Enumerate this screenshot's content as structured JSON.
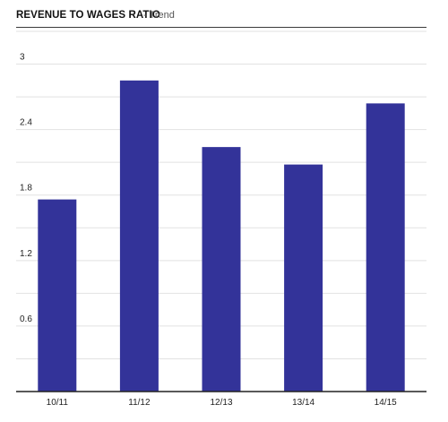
{
  "header": {
    "title": "REVENUE TO WAGES RATIO",
    "subtitle": "- Trend"
  },
  "colors": {
    "bar": "#333399",
    "gridline": "#e2e2e2",
    "axis": "#222222",
    "text": "#222222"
  },
  "chart_data": {
    "type": "bar",
    "title": "REVENUE TO WAGES RATIO",
    "subtitle": "- Trend",
    "categories": [
      "10/11",
      "11/12",
      "12/13",
      "13/14",
      "14/15"
    ],
    "values": [
      1.76,
      2.85,
      2.24,
      2.08,
      2.64
    ],
    "xlabel": "",
    "ylabel": "",
    "ylim": [
      0,
      3.3
    ],
    "yticks": [
      0.6,
      1.2,
      1.8,
      2.4,
      3
    ],
    "ytick_labels": [
      "0.6",
      "1.2",
      "1.8",
      "2.4",
      "3"
    ],
    "grid": true,
    "legend": "none"
  }
}
